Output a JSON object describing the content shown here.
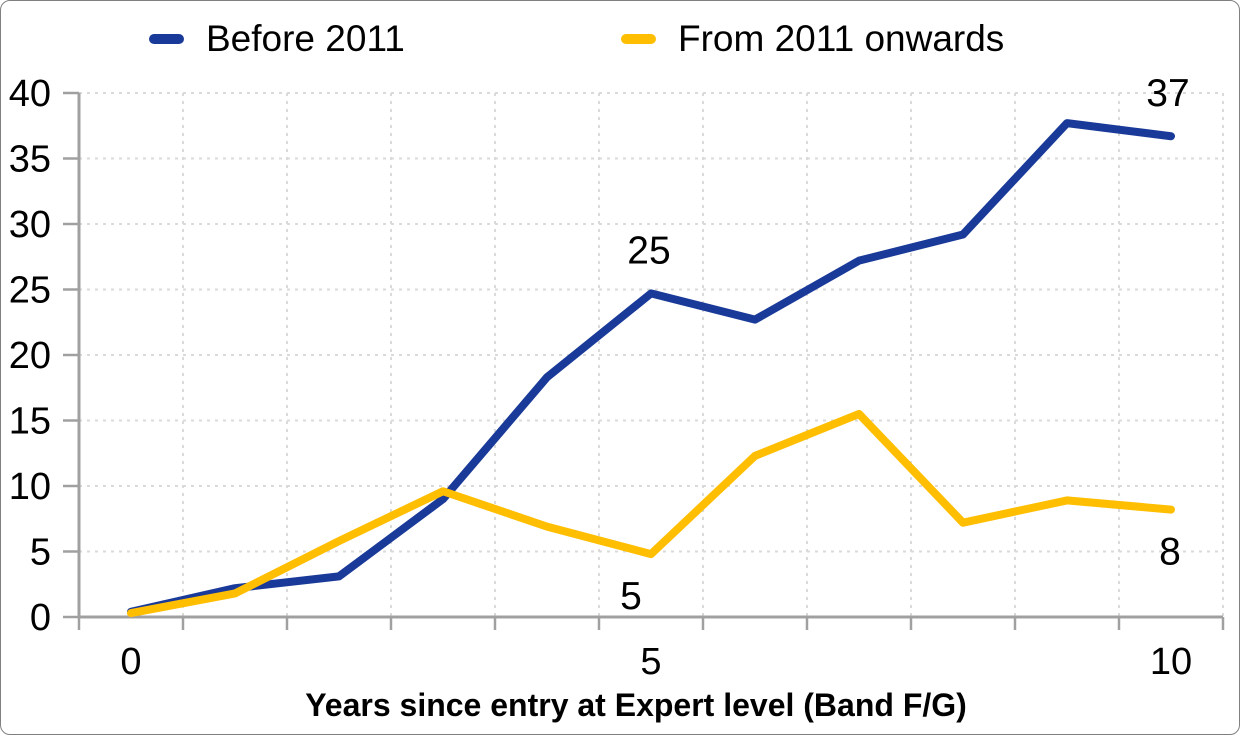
{
  "chart_data": {
    "type": "line",
    "x": [
      0,
      1,
      2,
      3,
      4,
      5,
      6,
      7,
      8,
      9,
      10
    ],
    "xlabel": "Years since entry at Expert level (Band F/G)",
    "ylabel": "",
    "ylim": [
      0,
      40
    ],
    "yticks": [
      0,
      5,
      10,
      15,
      20,
      25,
      30,
      35,
      40
    ],
    "xticks": [
      0,
      5,
      10
    ],
    "grid": "dashed",
    "legend_position": "top",
    "series": [
      {
        "name": "Before 2011",
        "color": "#1A3A99",
        "values": [
          0.4,
          2.2,
          3.1,
          9,
          18.3,
          24.7,
          22.7,
          27.2,
          29.2,
          37.7,
          36.7
        ]
      },
      {
        "name": "From 2011 onwards",
        "color": "#FFBE00",
        "values": [
          0.3,
          1.8,
          5.8,
          9.6,
          6.9,
          4.8,
          12.3,
          15.5,
          7.2,
          8.9,
          8.2
        ]
      }
    ],
    "annotations": [
      {
        "series": 0,
        "x": 5,
        "text": "25",
        "position": "above",
        "dx": -2
      },
      {
        "series": 0,
        "x": 10,
        "text": "37",
        "position": "above",
        "dx": -3
      },
      {
        "series": 1,
        "x": 5,
        "text": "5",
        "position": "below",
        "dx": -20
      },
      {
        "series": 1,
        "x": 10,
        "text": "8",
        "position": "below",
        "dx": -1
      }
    ],
    "colors": {
      "axis": "#A0A0A0",
      "grid": "#DADADA",
      "text": "#000000"
    }
  }
}
